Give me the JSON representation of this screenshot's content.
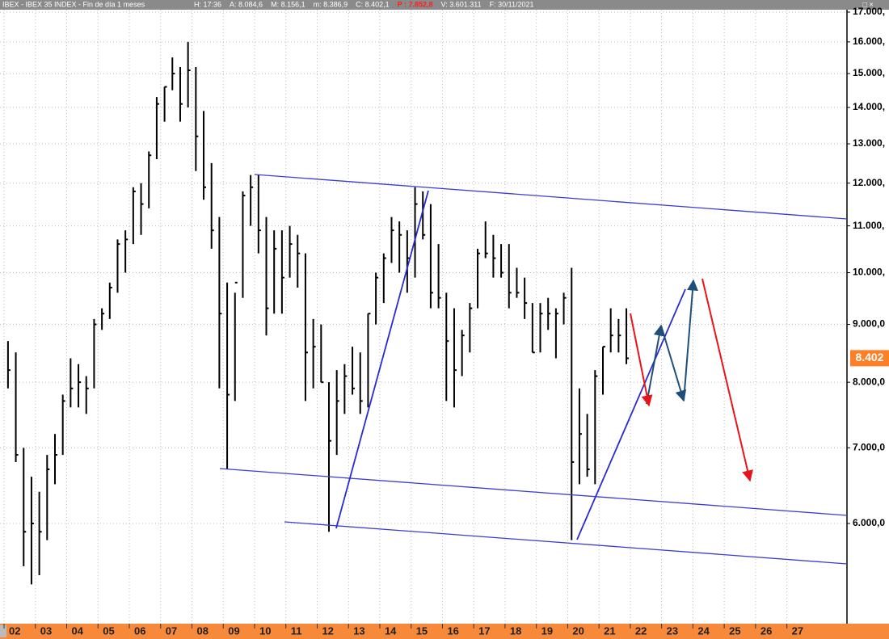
{
  "chart_data": {
    "type": "hlc",
    "title": "IBEX - IBEX 35 INDEX - Fin de día 1 meses",
    "info": [
      "H: 17:36",
      "A: 8.084,6",
      "M: 8.156,1",
      "m: 8.386,9",
      "C: 8.402,1",
      "P : 7.852,8",
      "V: 3.601.311",
      "F: 30/11/2021"
    ],
    "color": "#000000",
    "log_scale": true,
    "grid": true,
    "xlim": [
      2001.87,
      2028.92
    ],
    "ylim": [
      4909,
      17084
    ],
    "xticks": [
      {
        "value": 2002,
        "label": "02"
      },
      {
        "value": 2003,
        "label": "03"
      },
      {
        "value": 2004,
        "label": "04"
      },
      {
        "value": 2005,
        "label": "05"
      },
      {
        "value": 2006,
        "label": "06"
      },
      {
        "value": 2007,
        "label": "07"
      },
      {
        "value": 2008,
        "label": "08"
      },
      {
        "value": 2009,
        "label": "09"
      },
      {
        "value": 2010,
        "label": "10"
      },
      {
        "value": 2011,
        "label": "11"
      },
      {
        "value": 2012,
        "label": "12"
      },
      {
        "value": 2013,
        "label": "13"
      },
      {
        "value": 2014,
        "label": "14"
      },
      {
        "value": 2015,
        "label": "15"
      },
      {
        "value": 2016,
        "label": "16"
      },
      {
        "value": 2017,
        "label": "17"
      },
      {
        "value": 2018,
        "label": "18"
      },
      {
        "value": 2019,
        "label": "19"
      },
      {
        "value": 2020,
        "label": "20"
      },
      {
        "value": 2021,
        "label": "21"
      },
      {
        "value": 2022,
        "label": "22"
      },
      {
        "value": 2023,
        "label": "23"
      },
      {
        "value": 2024,
        "label": "24"
      },
      {
        "value": 2025,
        "label": "25"
      },
      {
        "value": 2026,
        "label": "26"
      },
      {
        "value": 2027,
        "label": "27"
      }
    ],
    "yticks": [
      {
        "value": 6000,
        "label": "6.000,0"
      },
      {
        "value": 7000,
        "label": "7.000,0"
      },
      {
        "value": 8000,
        "label": "8.000,0"
      },
      {
        "value": 9000,
        "label": "9.000,0"
      },
      {
        "value": 10000,
        "label": "10.000,"
      },
      {
        "value": 11000,
        "label": "11.000,"
      },
      {
        "value": 12000,
        "label": "12.000,"
      },
      {
        "value": 13000,
        "label": "13.000,"
      },
      {
        "value": 14000,
        "label": "14.000,"
      },
      {
        "value": 15000,
        "label": "15.000,"
      },
      {
        "value": 16000,
        "label": "16.000,"
      },
      {
        "value": 17000,
        "label": "17.000,"
      }
    ],
    "last_price": {
      "value": 8402,
      "label": "8.402"
    },
    "last_price_color": "#ff7f27",
    "x": [
      2002.125,
      2002.375,
      2002.625,
      2002.875,
      2003.125,
      2003.375,
      2003.625,
      2003.875,
      2004.125,
      2004.375,
      2004.625,
      2004.875,
      2005.125,
      2005.375,
      2005.625,
      2005.875,
      2006.125,
      2006.375,
      2006.625,
      2006.875,
      2007.125,
      2007.375,
      2007.625,
      2007.875,
      2008.125,
      2008.375,
      2008.625,
      2008.875,
      2009.125,
      2009.375,
      2009.625,
      2009.875,
      2010.125,
      2010.375,
      2010.625,
      2010.875,
      2011.125,
      2011.375,
      2011.625,
      2011.875,
      2012.125,
      2012.375,
      2012.625,
      2012.875,
      2013.125,
      2013.375,
      2013.625,
      2013.875,
      2014.125,
      2014.375,
      2014.625,
      2014.875,
      2015.125,
      2015.375,
      2015.625,
      2015.875,
      2016.125,
      2016.375,
      2016.625,
      2016.875,
      2017.125,
      2017.375,
      2017.625,
      2017.875,
      2018.125,
      2018.375,
      2018.625,
      2018.875,
      2019.125,
      2019.375,
      2019.625,
      2019.875,
      2020.125,
      2020.375,
      2020.625,
      2020.875,
      2021.125,
      2021.375,
      2021.625,
      2021.875
    ],
    "high": [
      8700,
      8500,
      7000,
      6600,
      6400,
      6900,
      7200,
      7800,
      8400,
      8300,
      8100,
      9100,
      9300,
      9800,
      10700,
      10900,
      11900,
      12000,
      12800,
      14300,
      14600,
      15500,
      15200,
      16000,
      15200,
      13900,
      12500,
      11200,
      9800,
      9600,
      11800,
      12200,
      12200,
      11200,
      10900,
      10900,
      11000,
      10800,
      10400,
      9100,
      9000,
      8000,
      8200,
      8300,
      8600,
      8500,
      9200,
      10000,
      10400,
      11200,
      11100,
      10900,
      11900,
      11800,
      11500,
      10600,
      9600,
      9300,
      8900,
      9400,
      10500,
      11100,
      10800,
      10600,
      10600,
      10100,
      9900,
      9400,
      9400,
      9500,
      9300,
      9600,
      10100,
      7900,
      7500,
      8200,
      8600,
      9300,
      9100,
      9300
    ],
    "low": [
      7900,
      6800,
      5500,
      5300,
      5400,
      5800,
      6500,
      6900,
      7600,
      7600,
      7500,
      7900,
      8900,
      9100,
      9600,
      10000,
      10600,
      10800,
      11400,
      12600,
      13600,
      14500,
      13600,
      14000,
      12300,
      11600,
      10500,
      7900,
      6700,
      7700,
      9500,
      11000,
      10400,
      8800,
      9200,
      9200,
      9900,
      9700,
      7700,
      7900,
      8000,
      5900,
      6900,
      7500,
      7800,
      7500,
      7600,
      9000,
      9400,
      10200,
      10000,
      9600,
      9900,
      10700,
      9300,
      9300,
      7700,
      7600,
      8100,
      8500,
      9300,
      10300,
      9900,
      9900,
      9300,
      9500,
      9100,
      8500,
      8500,
      8900,
      8400,
      9000,
      5800,
      6500,
      6600,
      6500,
      7800,
      8500,
      8500,
      8300
    ],
    "close": [
      8200,
      6900,
      5900,
      6000,
      5900,
      6700,
      6900,
      7700,
      7900,
      8000,
      7900,
      9000,
      9200,
      9700,
      10600,
      10700,
      11800,
      11500,
      12700,
      14100,
      14600,
      15000,
      14100,
      15100,
      13200,
      11900,
      10900,
      9200,
      7800,
      9800,
      11700,
      11900,
      10900,
      9300,
      10500,
      9900,
      10600,
      10400,
      8500,
      8600,
      8000,
      7100,
      7700,
      8100,
      7900,
      7700,
      9200,
      9900,
      10300,
      10900,
      10800,
      10300,
      11500,
      10800,
      9600,
      9500,
      8700,
      8200,
      8800,
      9300,
      10400,
      10400,
      10300,
      10000,
      9600,
      9600,
      9400,
      8500,
      9200,
      9200,
      9200,
      9500,
      6800,
      7200,
      6700,
      8100,
      8600,
      8800,
      8800,
      8400
    ]
  }
}
